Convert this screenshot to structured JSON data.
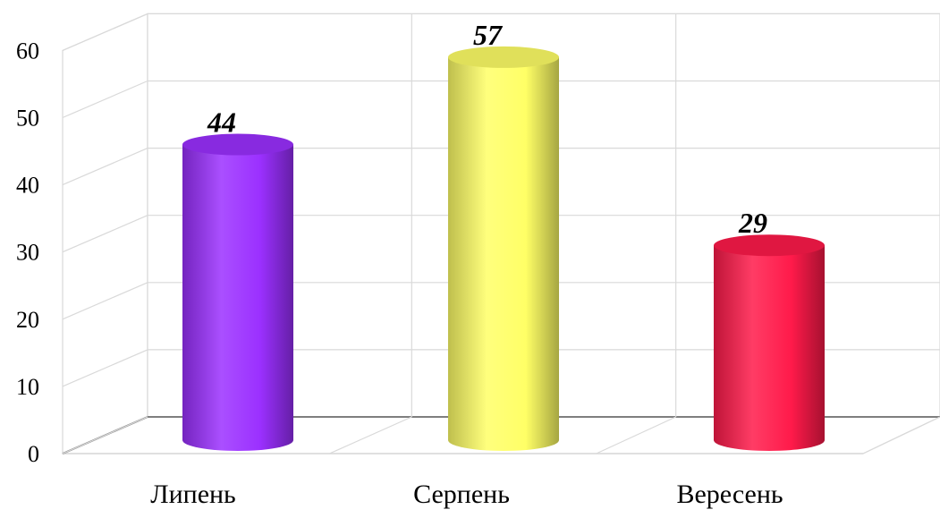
{
  "chart_data": {
    "type": "bar",
    "style": "3d-cylinder",
    "categories": [
      "Липень",
      "Серпень",
      "Вересень"
    ],
    "values": [
      44,
      57,
      29
    ],
    "data_labels": [
      "44",
      "57",
      "29"
    ],
    "bar_colors": [
      "#9b30ff",
      "#ffff66",
      "#ff1a4a"
    ],
    "ylim": [
      0,
      60
    ],
    "yticks": [
      "0",
      "10",
      "20",
      "30",
      "40",
      "50",
      "60"
    ],
    "grid": true,
    "legend": "none"
  }
}
